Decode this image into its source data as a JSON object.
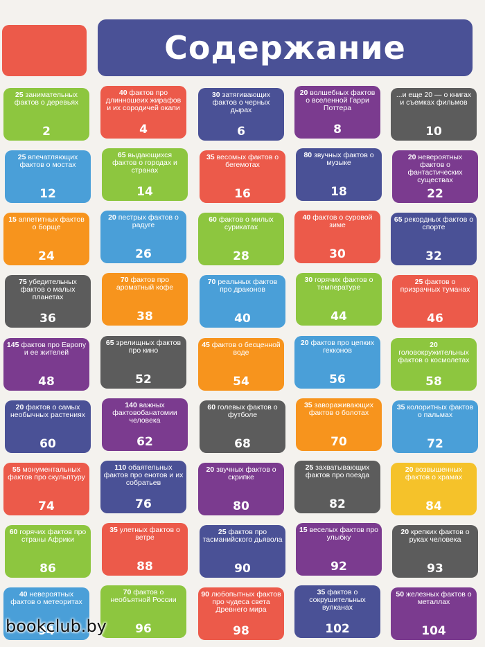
{
  "header": {
    "title": "Содержание"
  },
  "watermark": "bookclub.by",
  "colors": {
    "green": "#8dc63f",
    "red": "#ec5a4a",
    "navy": "#4a5196",
    "purple": "#7b3b8f",
    "gray": "#5c5c5c",
    "blue": "#4a9fd8",
    "orange": "#f7941d",
    "yellow": "#f5c22a"
  },
  "cards": [
    {
      "num": "25",
      "text": "занимательных фактов о деревьях",
      "page": "2",
      "color": "green"
    },
    {
      "num": "40",
      "text": "фактов про длинношеих жирафов и их сородичей окапи",
      "page": "4",
      "color": "red"
    },
    {
      "num": "30",
      "text": "затягивающих фактов о черных дырах",
      "page": "6",
      "color": "navy"
    },
    {
      "num": "20",
      "text": "волшебных фактов о вселенной Гарри Поттера",
      "page": "8",
      "color": "purple"
    },
    {
      "num": "",
      "text": "...и еще 20 — о книгах и съемках фильмов",
      "page": "10",
      "color": "gray"
    },
    {
      "num": "25",
      "text": "впечатляющих фактов о мостах",
      "page": "12",
      "color": "blue"
    },
    {
      "num": "65",
      "text": "выдающихся фактов о городах и странах",
      "page": "14",
      "color": "green"
    },
    {
      "num": "35",
      "text": "весомых фактов о бегемотах",
      "page": "16",
      "color": "red"
    },
    {
      "num": "80",
      "text": "звучных фактов о музыке",
      "page": "18",
      "color": "navy"
    },
    {
      "num": "20",
      "text": "невероятных фактов о фантастических существах",
      "page": "22",
      "color": "purple"
    },
    {
      "num": "15",
      "text": "аппетитных фактов о борще",
      "page": "24",
      "color": "orange"
    },
    {
      "num": "20",
      "text": "пестрых фактов о радуге",
      "page": "26",
      "color": "blue"
    },
    {
      "num": "60",
      "text": "фактов о милых сурикатах",
      "page": "28",
      "color": "green"
    },
    {
      "num": "40",
      "text": "фактов о суровой зиме",
      "page": "30",
      "color": "red"
    },
    {
      "num": "65",
      "text": "рекордных фактов о спорте",
      "page": "32",
      "color": "navy"
    },
    {
      "num": "75",
      "text": "убедительных фактов о малых планетах",
      "page": "36",
      "color": "gray"
    },
    {
      "num": "70",
      "text": "фактов про ароматный кофе",
      "page": "38",
      "color": "orange"
    },
    {
      "num": "70",
      "text": "реальных фактов про драконов",
      "page": "40",
      "color": "blue"
    },
    {
      "num": "30",
      "text": "горячих фактов о температуре",
      "page": "44",
      "color": "green"
    },
    {
      "num": "25",
      "text": "фактов о призрачных туманах",
      "page": "46",
      "color": "red"
    },
    {
      "num": "145",
      "text": "фактов про Европу и ее жителей",
      "page": "48",
      "color": "purple"
    },
    {
      "num": "65",
      "text": "зрелищных фактов про кино",
      "page": "52",
      "color": "gray"
    },
    {
      "num": "45",
      "text": "фактов о бесценной воде",
      "page": "54",
      "color": "orange"
    },
    {
      "num": "20",
      "text": "фактов про цепких гекконов",
      "page": "56",
      "color": "blue"
    },
    {
      "num": "20",
      "text": "головокружительных фактов о космолетах",
      "page": "58",
      "color": "green"
    },
    {
      "num": "20",
      "text": "фактов о самых необычных растениях",
      "page": "60",
      "color": "navy"
    },
    {
      "num": "140",
      "text": "важных фактовобанатомии человека",
      "page": "62",
      "color": "purple"
    },
    {
      "num": "60",
      "text": "голевых фактов о футболе",
      "page": "68",
      "color": "gray"
    },
    {
      "num": "35",
      "text": "завораживающих фактов о болотах",
      "page": "70",
      "color": "orange"
    },
    {
      "num": "35",
      "text": "колоритных фактов о пальмах",
      "page": "72",
      "color": "blue"
    },
    {
      "num": "55",
      "text": "монументальных фактов про скульптуру",
      "page": "74",
      "color": "red"
    },
    {
      "num": "110",
      "text": "обаятельных фактов про енотов и их собратьев",
      "page": "76",
      "color": "navy"
    },
    {
      "num": "20",
      "text": "звучных фактов о скрипке",
      "page": "80",
      "color": "purple"
    },
    {
      "num": "25",
      "text": "захватывающих фактов про поезда",
      "page": "82",
      "color": "gray"
    },
    {
      "num": "20",
      "text": "возвышенных фактов о храмах",
      "page": "84",
      "color": "yellow"
    },
    {
      "num": "60",
      "text": "горячих фактов про страны Африки",
      "page": "86",
      "color": "green"
    },
    {
      "num": "35",
      "text": "улетных фактов о ветре",
      "page": "88",
      "color": "red"
    },
    {
      "num": "25",
      "text": "фактов про тасманийского дьявола",
      "page": "90",
      "color": "navy"
    },
    {
      "num": "15",
      "text": "веселых фактов про улыбку",
      "page": "92",
      "color": "purple"
    },
    {
      "num": "20",
      "text": "крепких фактов о руках человека",
      "page": "93",
      "color": "gray"
    },
    {
      "num": "40",
      "text": "невероятных фактов о метеоритах",
      "page": "94",
      "color": "blue"
    },
    {
      "num": "70",
      "text": "фактов о необъятной России",
      "page": "96",
      "color": "green"
    },
    {
      "num": "90",
      "text": "любопытных фактов про чудеса света Древнего мира",
      "page": "98",
      "color": "red"
    },
    {
      "num": "35",
      "text": "фактов о сокрушительных вулканах",
      "page": "102",
      "color": "navy"
    },
    {
      "num": "50",
      "text": "железных фактов о металлах",
      "page": "104",
      "color": "purple"
    }
  ]
}
